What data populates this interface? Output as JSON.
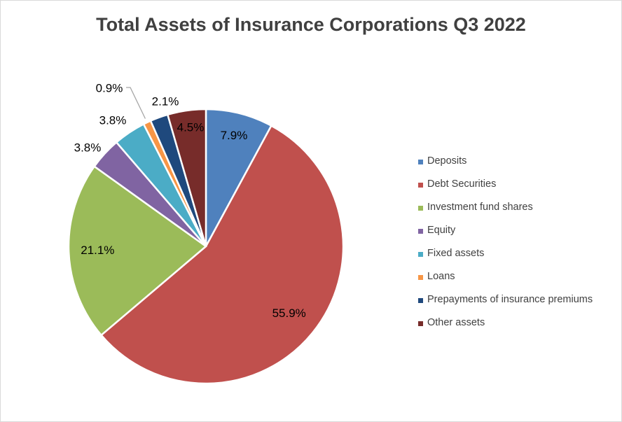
{
  "chart_data": {
    "type": "pie",
    "title": "Total Assets of Insurance Corporations Q3 2022",
    "legend_position": "right",
    "slices": [
      {
        "name": "Deposits",
        "value": 7.9,
        "label": "7.9%",
        "color": "#4f81bd"
      },
      {
        "name": "Debt Securities",
        "value": 55.9,
        "label": "55.9%",
        "color": "#c0504d"
      },
      {
        "name": "Investment fund shares",
        "value": 21.1,
        "label": "21.1%",
        "color": "#9bbb59"
      },
      {
        "name": "Equity",
        "value": 3.8,
        "label": "3.8%",
        "color": "#8064a2"
      },
      {
        "name": "Fixed assets",
        "value": 3.8,
        "label": "3.8%",
        "color": "#4bacc6"
      },
      {
        "name": "Loans",
        "value": 0.9,
        "label": "0.9%",
        "color": "#f79646"
      },
      {
        "name": "Prepayments of insurance premiums",
        "value": 2.1,
        "label": "2.1%",
        "color": "#1f497d"
      },
      {
        "name": "Other assets",
        "value": 4.5,
        "label": "4.5%",
        "color": "#772c2a"
      }
    ]
  }
}
